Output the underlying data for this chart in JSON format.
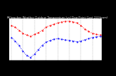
{
  "title": "Milwaukee Weather Outdoor Temperature (vs) Dew Point (Last 24 Hours)",
  "temp": [
    68,
    65,
    60,
    55,
    52,
    50,
    53,
    56,
    60,
    65,
    68,
    70,
    72,
    74,
    75,
    75,
    74,
    72,
    68,
    62,
    58,
    55,
    53,
    52
  ],
  "dew": [
    48,
    42,
    35,
    25,
    18,
    15,
    20,
    28,
    35,
    40,
    43,
    45,
    46,
    45,
    44,
    43,
    42,
    41,
    42,
    44,
    46,
    48,
    49,
    50
  ],
  "temp_color": "#ff0000",
  "dew_color": "#0000ff",
  "bg_color": "#ffffff",
  "outer_bg": "#000000",
  "ylim": [
    10,
    80
  ],
  "yticks": [
    10,
    20,
    30,
    40,
    50,
    60,
    70,
    80
  ],
  "ytick_labels": [
    "8",
    "7",
    "6",
    "5",
    "4",
    "3",
    "2",
    "1"
  ],
  "n_points": 24,
  "ylabel_fontsize": 3.0,
  "xlabel_fontsize": 2.5,
  "title_fontsize": 2.8,
  "line_width": 0.7,
  "marker_size": 1.2,
  "grid_color": "#888888",
  "grid_lw": 0.3
}
